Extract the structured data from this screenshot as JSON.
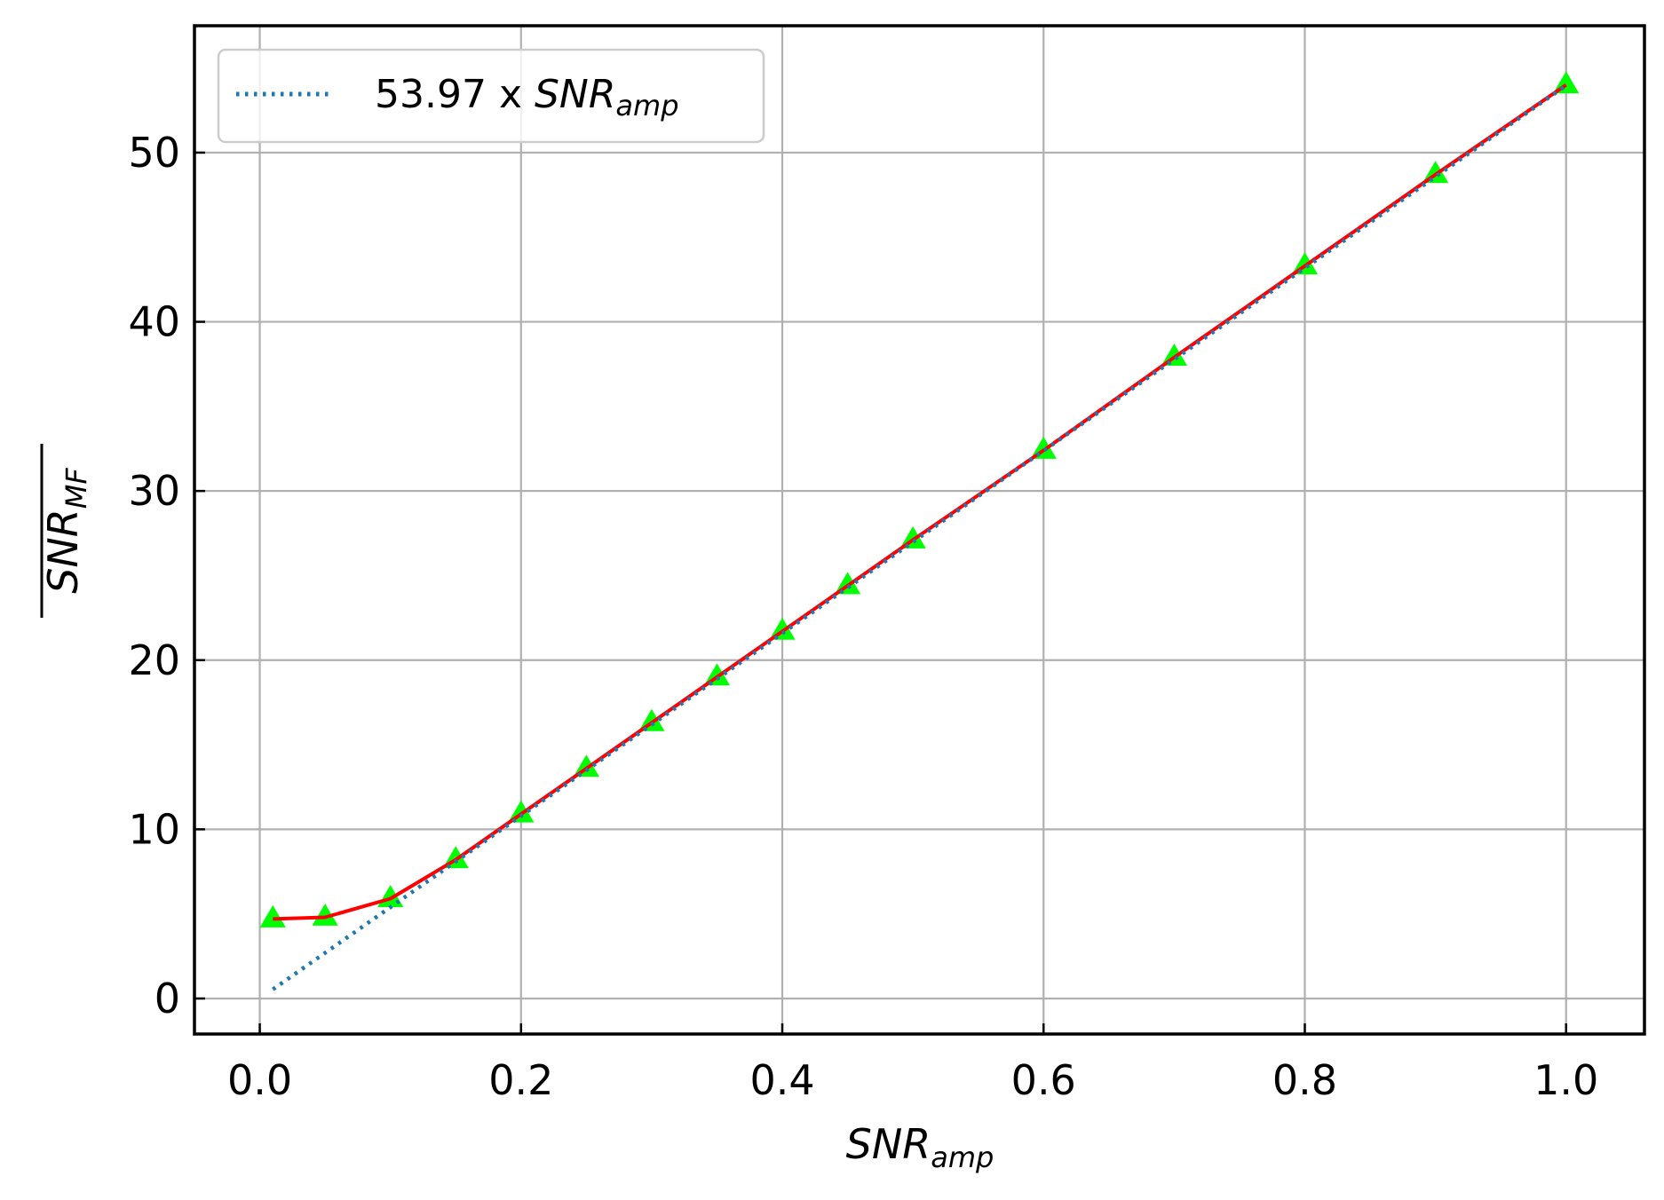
{
  "chart_data": {
    "type": "line",
    "xlabel": {
      "base": "SNR",
      "sub": "amp"
    },
    "ylabel": {
      "base": "SNR",
      "sub": "MF",
      "overline": true
    },
    "xlim": [
      -0.05,
      1.06
    ],
    "ylim": [
      -2.1,
      57.5
    ],
    "xticks": [
      0.0,
      0.2,
      0.4,
      0.6,
      0.8,
      1.0
    ],
    "xtick_labels": [
      "0.0",
      "0.2",
      "0.4",
      "0.6",
      "0.8",
      "1.0"
    ],
    "yticks": [
      0,
      10,
      20,
      30,
      40,
      50
    ],
    "ytick_labels": [
      "0",
      "10",
      "20",
      "30",
      "40",
      "50"
    ],
    "grid": true,
    "legend": {
      "placement": "top-left",
      "entries": [
        {
          "prefix": "53.97 x ",
          "base": "SNR",
          "sub": "amp"
        }
      ]
    },
    "series": [
      {
        "name": "53.97 x SNR_amp",
        "style": "dotted",
        "color": "#1f77b4",
        "x": [
          0.01,
          1.0
        ],
        "y": [
          0.54,
          53.97
        ]
      },
      {
        "style": "solid",
        "color": "#ff0000",
        "x": [
          0.01,
          0.05,
          0.1,
          0.15,
          0.2,
          0.25,
          0.3,
          0.35,
          0.4,
          0.45,
          0.5,
          0.6,
          0.7,
          0.8,
          0.9,
          1.0
        ],
        "y": [
          4.7,
          4.8,
          5.9,
          8.2,
          10.9,
          13.6,
          16.3,
          19.0,
          21.7,
          24.4,
          27.1,
          32.4,
          37.9,
          43.3,
          48.7,
          54.0
        ]
      },
      {
        "style": "markers",
        "marker": "triangle",
        "color": "#00ff00",
        "x": [
          0.01,
          0.05,
          0.1,
          0.15,
          0.2,
          0.25,
          0.3,
          0.35,
          0.4,
          0.45,
          0.5,
          0.6,
          0.7,
          0.8,
          0.9,
          1.0
        ],
        "y": [
          4.7,
          4.8,
          5.9,
          8.2,
          10.9,
          13.6,
          16.3,
          19.0,
          21.7,
          24.4,
          27.1,
          32.4,
          37.9,
          43.3,
          48.7,
          54.0
        ]
      }
    ]
  }
}
